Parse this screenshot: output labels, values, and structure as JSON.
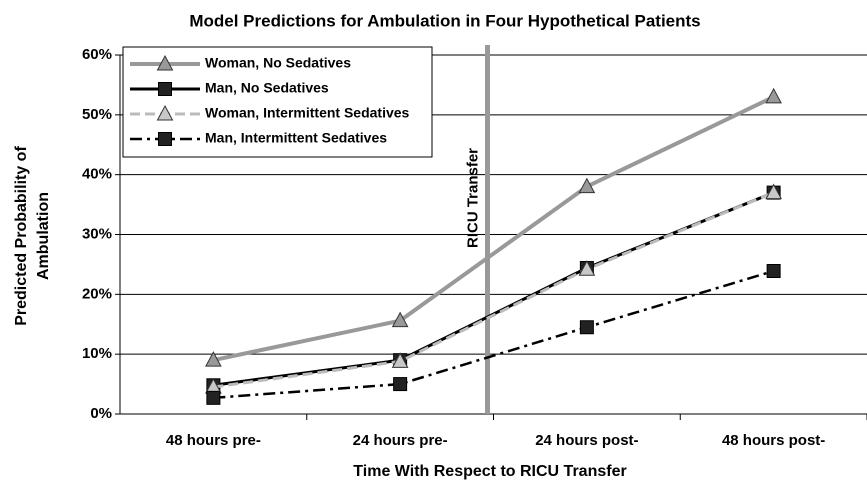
{
  "chart_data": {
    "type": "line",
    "title": "Model Predictions for Ambulation in Four Hypothetical Patients",
    "xlabel": "Time With Respect to RICU Transfer",
    "ylabel": [
      "Predicted Probability of",
      "Ambulation"
    ],
    "annotation": "RICU Transfer",
    "categories": [
      "48 hours pre-",
      "24 hours pre-",
      "24 hours post-",
      "48 hours post-"
    ],
    "series": [
      {
        "name": "Woman, No Sedatives",
        "color": "#999999",
        "marker": "triangle",
        "dash": "solid",
        "values": [
          9,
          15.6,
          38,
          53
        ]
      },
      {
        "name": "Man, No Sedatives",
        "color": "#000000",
        "marker": "square",
        "dash": "solid",
        "values": [
          4.8,
          9,
          24.4,
          37
        ]
      },
      {
        "name": "Woman, Intermittent Sedatives",
        "color": "#bbbbbb",
        "marker": "triangle",
        "dash": "dash",
        "values": [
          4.5,
          8.8,
          24.2,
          37
        ]
      },
      {
        "name": "Man, Intermittent Sedatives",
        "color": "#000000",
        "marker": "square",
        "dash": "dashdot",
        "values": [
          2.7,
          5,
          14.5,
          23.9
        ]
      }
    ],
    "ylim": [
      0,
      60
    ],
    "yticks": [
      {
        "value": 0,
        "label": "0%"
      },
      {
        "value": 10,
        "label": "10%"
      },
      {
        "value": 20,
        "label": "20%"
      },
      {
        "value": 30,
        "label": "30%"
      },
      {
        "value": 40,
        "label": "40%"
      },
      {
        "value": 50,
        "label": "50%"
      },
      {
        "value": 60,
        "label": "60%"
      }
    ],
    "grid": true,
    "legend": "upper left"
  }
}
